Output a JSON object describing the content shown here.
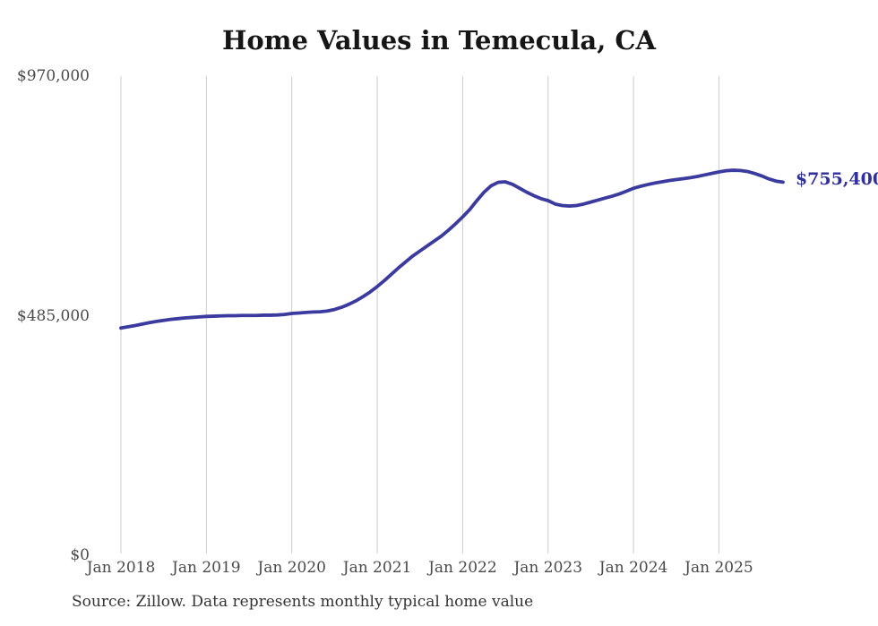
{
  "chart_data": {
    "type": "line",
    "title": "Home Values in Temecula, CA",
    "source": "Source: Zillow. Data represents monthly typical home value",
    "end_label": "$755,400",
    "latest_value": 755400,
    "line_color": "#3a3a9f",
    "end_label_color": "#2f2f9e",
    "grid_color": "#cccccc",
    "axis_label_color": "#4a4a4a",
    "background_color": "#ffffff",
    "ylim": [
      0,
      970000
    ],
    "grid": "vertical-only",
    "legend_position": "none",
    "y_ticks": [
      {
        "value": 0,
        "label": "$0"
      },
      {
        "value": 485000,
        "label": "$485,000"
      },
      {
        "value": 970000,
        "label": "$970,000"
      }
    ],
    "x_tick_labels": [
      "Jan 2018",
      "Jan 2019",
      "Jan 2020",
      "Jan 2021",
      "Jan 2022",
      "Jan 2023",
      "Jan 2024",
      "Jan 2025"
    ],
    "series": [
      {
        "name": "Typical home value",
        "interval": "monthly",
        "start": "Jan 2018",
        "values": [
          460000,
          462500,
          465000,
          468000,
          471000,
          473500,
          475500,
          477500,
          479000,
          480500,
          481500,
          482500,
          483500,
          484000,
          484500,
          485000,
          485000,
          485500,
          485500,
          485500,
          486000,
          486000,
          486500,
          487500,
          489500,
          490500,
          491500,
          492500,
          493000,
          494500,
          497500,
          502000,
          508000,
          515000,
          523500,
          533000,
          544000,
          556000,
          569000,
          582000,
          594000,
          606000,
          616000,
          626000,
          636000,
          646000,
          658000,
          671000,
          685000,
          700000,
          718000,
          735000,
          748000,
          755000,
          756000,
          751000,
          743000,
          735000,
          728000,
          722000,
          718000,
          711000,
          708000,
          707000,
          708000,
          711000,
          715000,
          719000,
          723000,
          727000,
          731500,
          737000,
          743000,
          747000,
          750500,
          753500,
          756000,
          758500,
          760500,
          762500,
          764500,
          767000,
          770000,
          773000,
          776000,
          778500,
          779500,
          779000,
          777000,
          773000,
          768000,
          762000,
          757500,
          755400
        ]
      }
    ]
  }
}
